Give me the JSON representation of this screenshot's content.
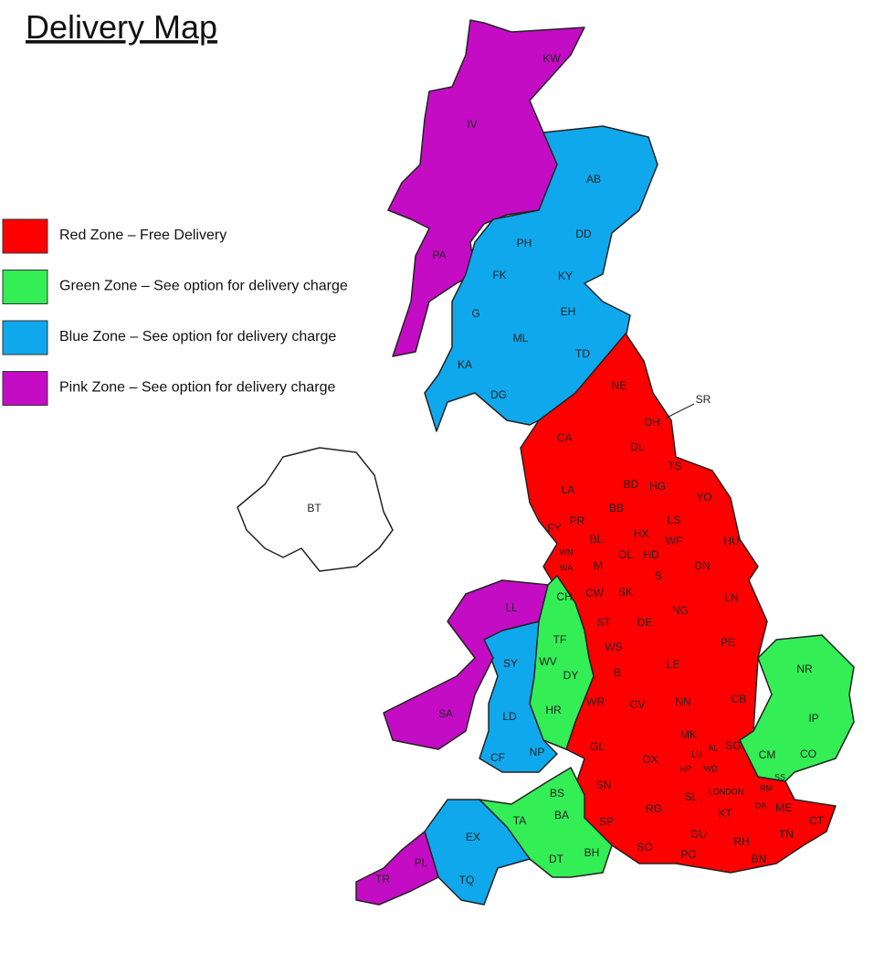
{
  "title": "Delivery Map",
  "legend": [
    {
      "label": "Red Zone – Free Delivery",
      "color": "#ff0000"
    },
    {
      "label": "Green Zone – See option for delivery charge",
      "color": "#33ee55"
    },
    {
      "label": "Blue Zone – See option for delivery charge",
      "color": "#10a8ec"
    },
    {
      "label": "Pink Zone – See option for delivery charge",
      "color": "#c40cc4"
    }
  ],
  "regions": [
    "KW",
    "IV",
    "AB",
    "PH",
    "DD",
    "PA",
    "FK",
    "KY",
    "EH",
    "G",
    "ML",
    "TD",
    "KA",
    "DG",
    "NE",
    "SR",
    "DH",
    "CA",
    "DL",
    "TS",
    "LA",
    "BD",
    "HG",
    "YO",
    "BB",
    "LS",
    "FY",
    "PR",
    "BL",
    "HX",
    "WF",
    "HU",
    "WN",
    "WA",
    "OL",
    "HD",
    "M",
    "DN",
    "S",
    "CH",
    "CW",
    "SK",
    "LL",
    "NG",
    "LN",
    "ST",
    "DE",
    "TF",
    "PE",
    "WS",
    "SY",
    "WV",
    "NR",
    "LE",
    "DY",
    "B",
    "WR",
    "CV",
    "NN",
    "CB",
    "HR",
    "SA",
    "LD",
    "IP",
    "MK",
    "GL",
    "AL",
    "LU",
    "SG",
    "CM",
    "CO",
    "CF",
    "NP",
    "OX",
    "HP",
    "WD",
    "SS",
    "SN",
    "RM",
    "LONDON",
    "BS",
    "SL",
    "DA",
    "ME",
    "CT",
    "KT",
    "RG",
    "TA",
    "BA",
    "SP",
    "EX",
    "GU",
    "TN",
    "RH",
    "SO",
    "BH",
    "DT",
    "PO",
    "BN",
    "PL",
    "TQ",
    "TR",
    "BT"
  ]
}
